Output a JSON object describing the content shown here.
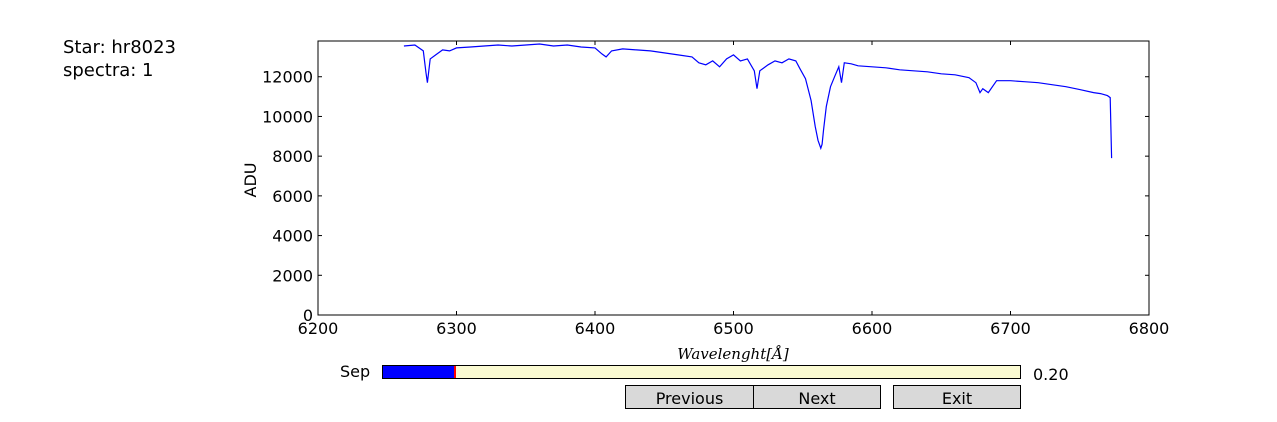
{
  "info": {
    "star": "Star: hr8023",
    "spectra": "spectra: 1"
  },
  "chart_data": {
    "type": "line",
    "xlabel": "Wavelenght[Å]",
    "ylabel": "ADU",
    "xlim": [
      6200,
      6800
    ],
    "ylim": [
      0,
      13800
    ],
    "xticks": [
      6200,
      6300,
      6400,
      6500,
      6600,
      6700,
      6800
    ],
    "yticks": [
      0,
      2000,
      4000,
      6000,
      8000,
      10000,
      12000
    ],
    "grid": false,
    "line_color": "#0000ff",
    "series": [
      {
        "x": [
          6262,
          6270,
          6276,
          6278,
          6279,
          6281,
          6285,
          6290,
          6295,
          6300,
          6310,
          6320,
          6330,
          6340,
          6350,
          6360,
          6370,
          6380,
          6390,
          6400,
          6405,
          6408,
          6412,
          6420,
          6430,
          6440,
          6450,
          6460,
          6470,
          6475,
          6480,
          6485,
          6490,
          6495,
          6500,
          6505,
          6510,
          6515,
          6517,
          6519,
          6525,
          6530,
          6535,
          6540,
          6545,
          6548,
          6552,
          6556,
          6559,
          6561,
          6563,
          6564,
          6565,
          6567,
          6570,
          6573,
          6576,
          6578,
          6580,
          6585,
          6590,
          6600,
          6610,
          6620,
          6630,
          6640,
          6650,
          6660,
          6670,
          6675,
          6678,
          6680,
          6684,
          6690,
          6700,
          6710,
          6720,
          6730,
          6740,
          6750,
          6760,
          6765,
          6770,
          6772,
          6773
        ],
        "y": [
          13550,
          13600,
          13300,
          12200,
          11700,
          12900,
          13100,
          13350,
          13300,
          13450,
          13500,
          13550,
          13600,
          13550,
          13600,
          13650,
          13550,
          13600,
          13500,
          13450,
          13150,
          13000,
          13300,
          13400,
          13350,
          13300,
          13200,
          13100,
          13000,
          12700,
          12600,
          12800,
          12500,
          12900,
          13100,
          12800,
          12900,
          12300,
          11400,
          12300,
          12600,
          12800,
          12700,
          12900,
          12800,
          12400,
          11900,
          10800,
          9500,
          8800,
          8400,
          8600,
          9300,
          10500,
          11500,
          12000,
          12500,
          11700,
          12700,
          12650,
          12550,
          12500,
          12450,
          12350,
          12300,
          12250,
          12150,
          12100,
          11950,
          11700,
          11200,
          11400,
          11200,
          11800,
          11800,
          11750,
          11700,
          11600,
          11500,
          11350,
          11200,
          11150,
          11050,
          10950,
          7900
        ]
      }
    ]
  },
  "slider": {
    "label": "Sep",
    "value": 0.2,
    "value_text": "0.20",
    "fraction": 0.113
  },
  "buttons": {
    "previous": "Previous",
    "next": "Next",
    "exit": "Exit"
  }
}
